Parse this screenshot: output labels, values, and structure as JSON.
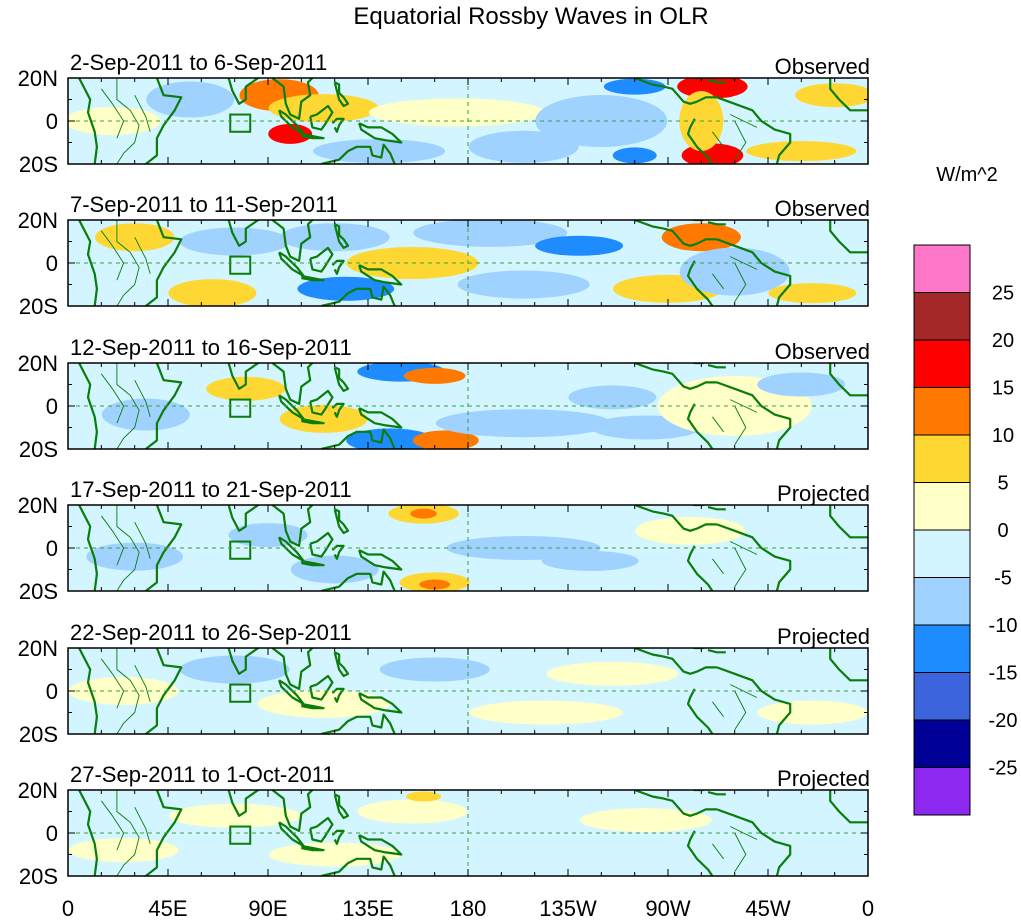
{
  "title": "Equatorial Rossby Waves in OLR",
  "units": "W/m^2",
  "lat_labels": [
    "20N",
    "0",
    "20S"
  ],
  "lon_labels": [
    "0",
    "45E",
    "90E",
    "135E",
    "180",
    "135W",
    "90W",
    "45W",
    "0"
  ],
  "panels": [
    {
      "date_range": "2-Sep-2011 to 6-Sep-2011",
      "status": "Observed"
    },
    {
      "date_range": "7-Sep-2011 to 11-Sep-2011",
      "status": "Observed"
    },
    {
      "date_range": "12-Sep-2011 to 16-Sep-2011",
      "status": "Observed"
    },
    {
      "date_range": "17-Sep-2011 to 21-Sep-2011",
      "status": "Projected"
    },
    {
      "date_range": "22-Sep-2011 to 26-Sep-2011",
      "status": "Projected"
    },
    {
      "date_range": "27-Sep-2011 to 1-Oct-2011",
      "status": "Projected"
    }
  ],
  "colorbar": {
    "labels": [
      "25",
      "20",
      "15",
      "10",
      "5",
      "0",
      "-5",
      "-10",
      "-15",
      "-20",
      "-25"
    ],
    "colors": [
      "#ff77c8",
      "#a52828",
      "#ff0000",
      "#ff7800",
      "#ffd732",
      "#ffffc8",
      "#d2f5ff",
      "#a0d2ff",
      "#1e8cff",
      "#3c64dc",
      "#000096",
      "#8c28f0"
    ]
  },
  "colors": {
    "coast": "#0a7d0a",
    "dash": "#3ca03c",
    "box": "#0a7d0a"
  }
}
